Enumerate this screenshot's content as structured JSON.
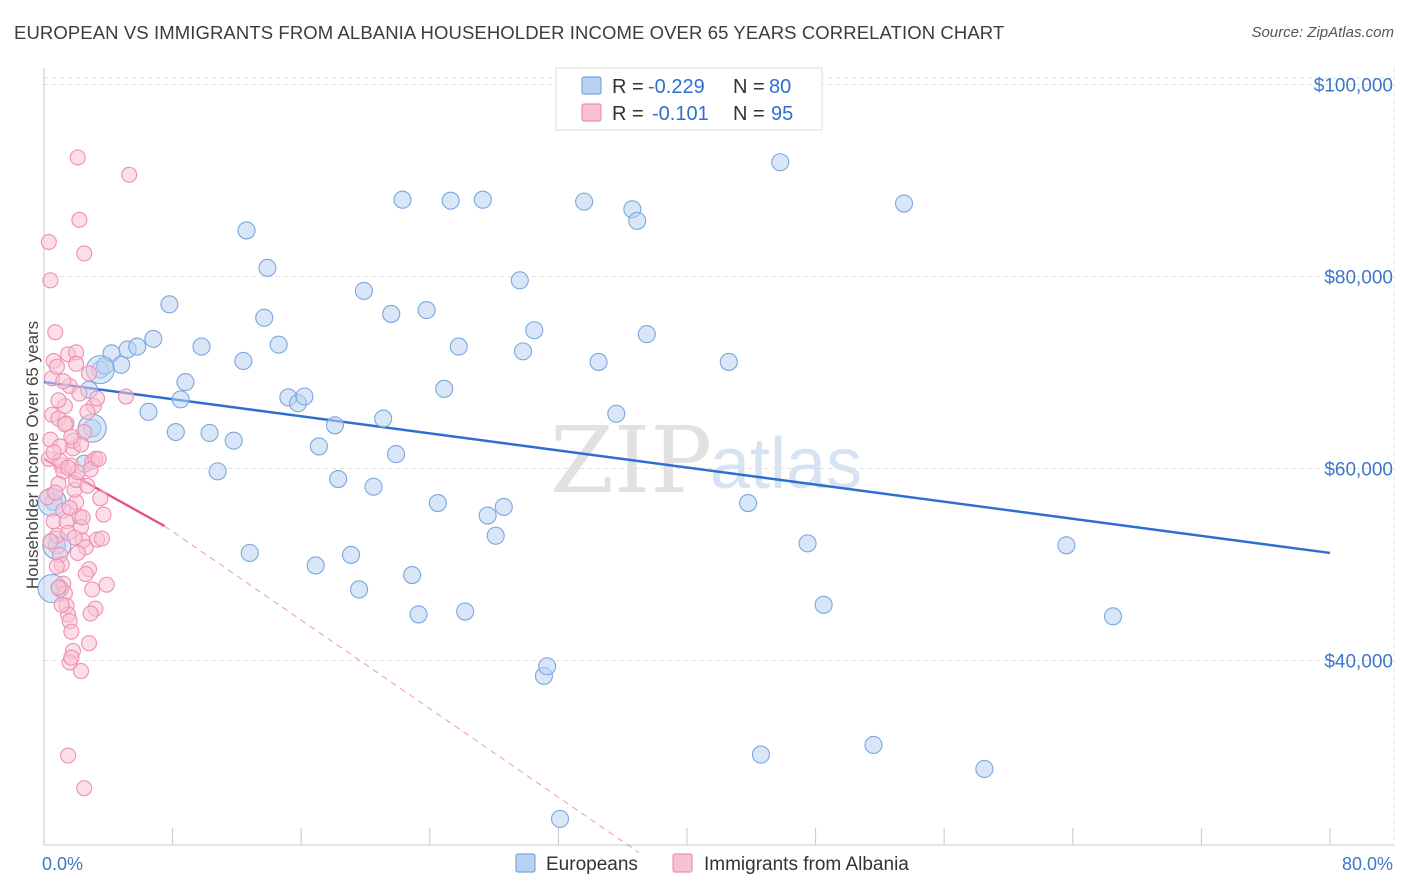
{
  "title": "EUROPEAN VS IMMIGRANTS FROM ALBANIA HOUSEHOLDER INCOME OVER 65 YEARS CORRELATION CHART",
  "source": "Source: ZipAtlas.com",
  "watermark": {
    "zip": "ZIP",
    "atlas": "atlas"
  },
  "chart_data": {
    "type": "scatter",
    "title": "EUROPEAN VS IMMIGRANTS FROM ALBANIA HOUSEHOLDER INCOME OVER 65 YEARS CORRELATION CHART",
    "xlabel": "",
    "ylabel": "Householder Income Over 65 years",
    "xlim": [
      0,
      80
    ],
    "ylim": [
      20000,
      104000
    ],
    "x_tick_labels": [
      "0.0%",
      "80.0%"
    ],
    "y_ticks": [
      {
        "value": 40000,
        "label": "$40,000"
      },
      {
        "value": 60000,
        "label": "$60,000"
      },
      {
        "value": 80000,
        "label": "$80,000"
      },
      {
        "value": 100000,
        "label": "$100,000"
      }
    ],
    "grid": true,
    "legend": {
      "position": "top-center",
      "entries": [
        {
          "r_label": "R =",
          "r_value": "-0.229",
          "n_label": "N =",
          "n_value": "80"
        },
        {
          "r_label": "R =",
          "r_value": "-0.101",
          "n_label": "N =",
          "n_value": "95"
        }
      ]
    },
    "series": [
      {
        "name": "Europeans",
        "color": "#7aa7df",
        "fill": "#b9d1f2",
        "trend": {
          "x": [
            0.0,
            80.0
          ],
          "y": [
            69000,
            51200
          ],
          "color": "#2c6fd1"
        },
        "points": [
          [
            1.0,
            47500
          ],
          [
            0.8,
            52000
          ],
          [
            0.6,
            56500
          ],
          [
            2.5,
            60500
          ],
          [
            3.0,
            64200
          ],
          [
            2.8,
            68200
          ],
          [
            3.5,
            70300
          ],
          [
            3.8,
            70700
          ],
          [
            4.2,
            72000
          ],
          [
            4.8,
            70800
          ],
          [
            5.2,
            72400
          ],
          [
            5.8,
            72700
          ],
          [
            6.8,
            73500
          ],
          [
            7.8,
            77100
          ],
          [
            6.5,
            65900
          ],
          [
            8.5,
            67200
          ],
          [
            8.8,
            69000
          ],
          [
            9.8,
            72700
          ],
          [
            8.2,
            63800
          ],
          [
            10.3,
            63700
          ],
          [
            10.8,
            59700
          ],
          [
            11.8,
            62900
          ],
          [
            12.4,
            71200
          ],
          [
            12.8,
            51200
          ],
          [
            12.6,
            84800
          ],
          [
            13.9,
            80900
          ],
          [
            13.7,
            75700
          ],
          [
            14.6,
            72900
          ],
          [
            15.2,
            67400
          ],
          [
            15.8,
            66800
          ],
          [
            16.2,
            67500
          ],
          [
            17.1,
            62300
          ],
          [
            16.9,
            49900
          ],
          [
            18.1,
            64500
          ],
          [
            18.3,
            58900
          ],
          [
            19.1,
            51000
          ],
          [
            19.6,
            47400
          ],
          [
            19.9,
            78500
          ],
          [
            20.5,
            58100
          ],
          [
            21.1,
            65200
          ],
          [
            21.6,
            76100
          ],
          [
            21.9,
            61500
          ],
          [
            22.3,
            88000
          ],
          [
            22.9,
            48900
          ],
          [
            23.3,
            44800
          ],
          [
            23.8,
            76500
          ],
          [
            24.5,
            56400
          ],
          [
            24.9,
            68300
          ],
          [
            25.3,
            87900
          ],
          [
            25.8,
            72700
          ],
          [
            26.2,
            45100
          ],
          [
            27.3,
            88000
          ],
          [
            27.6,
            55100
          ],
          [
            28.1,
            53000
          ],
          [
            28.6,
            56000
          ],
          [
            29.6,
            79600
          ],
          [
            29.8,
            72200
          ],
          [
            30.5,
            74400
          ],
          [
            31.1,
            38400
          ],
          [
            31.3,
            39400
          ],
          [
            32.1,
            23500
          ],
          [
            33.6,
            87800
          ],
          [
            34.5,
            71100
          ],
          [
            35.6,
            65700
          ],
          [
            36.6,
            87000
          ],
          [
            36.9,
            85800
          ],
          [
            37.5,
            74000
          ],
          [
            42.6,
            71100
          ],
          [
            43.8,
            56400
          ],
          [
            44.6,
            30200
          ],
          [
            45.8,
            91900
          ],
          [
            47.5,
            52200
          ],
          [
            48.5,
            45800
          ],
          [
            51.6,
            31200
          ],
          [
            53.5,
            87600
          ],
          [
            58.5,
            28700
          ],
          [
            63.6,
            52000
          ],
          [
            66.5,
            44600
          ]
        ],
        "large_points": [
          [
            3.0,
            64200
          ],
          [
            3.5,
            70300
          ],
          [
            0.5,
            56500
          ],
          [
            0.8,
            52000
          ],
          [
            0.5,
            47500
          ]
        ]
      },
      {
        "name": "Immigrants from Albania",
        "color": "#ef8fb0",
        "fill": "#f7c2d5",
        "trend": {
          "x": [
            0.0,
            7.5
          ],
          "y": [
            61000,
            54000
          ],
          "dashed_to": [
            37.0,
            20000
          ],
          "color": "#e5528a"
        },
        "points": [
          [
            0.2,
            57000
          ],
          [
            0.3,
            61000
          ],
          [
            0.4,
            63000
          ],
          [
            0.5,
            65600
          ],
          [
            0.5,
            69400
          ],
          [
            0.6,
            71200
          ],
          [
            0.7,
            74200
          ],
          [
            0.8,
            70600
          ],
          [
            0.9,
            65200
          ],
          [
            1.0,
            62300
          ],
          [
            1.1,
            60300
          ],
          [
            1.2,
            59700
          ],
          [
            1.3,
            66500
          ],
          [
            1.4,
            64700
          ],
          [
            1.5,
            71900
          ],
          [
            1.6,
            68600
          ],
          [
            1.7,
            60300
          ],
          [
            1.8,
            62100
          ],
          [
            0.3,
            83600
          ],
          [
            0.4,
            79600
          ],
          [
            2.1,
            92400
          ],
          [
            2.2,
            85900
          ],
          [
            2.5,
            82400
          ],
          [
            5.3,
            90600
          ],
          [
            0.6,
            54500
          ],
          [
            0.8,
            53000
          ],
          [
            1.0,
            51000
          ],
          [
            1.1,
            50000
          ],
          [
            1.2,
            48000
          ],
          [
            1.3,
            47000
          ],
          [
            1.4,
            45700
          ],
          [
            1.5,
            44800
          ],
          [
            1.6,
            44100
          ],
          [
            1.7,
            43000
          ],
          [
            1.8,
            41000
          ],
          [
            1.6,
            39800
          ],
          [
            1.7,
            40300
          ],
          [
            2.3,
            38900
          ],
          [
            1.5,
            30100
          ],
          [
            2.5,
            26700
          ],
          [
            2.0,
            56500
          ],
          [
            2.2,
            55000
          ],
          [
            2.3,
            53900
          ],
          [
            2.4,
            52500
          ],
          [
            2.6,
            51800
          ],
          [
            2.8,
            49500
          ],
          [
            3.0,
            47400
          ],
          [
            3.2,
            45400
          ],
          [
            3.3,
            52600
          ],
          [
            3.5,
            56900
          ],
          [
            3.7,
            55200
          ],
          [
            3.9,
            47900
          ],
          [
            3.0,
            60700
          ],
          [
            3.1,
            66500
          ],
          [
            2.0,
            72100
          ],
          [
            2.2,
            67800
          ],
          [
            3.2,
            61000
          ],
          [
            3.3,
            67300
          ],
          [
            2.8,
            69900
          ],
          [
            5.1,
            67500
          ],
          [
            1.9,
            57800
          ],
          [
            2.0,
            58800
          ],
          [
            2.1,
            59600
          ],
          [
            2.7,
            58200
          ],
          [
            2.9,
            59900
          ],
          [
            1.0,
            60800
          ],
          [
            0.9,
            58400
          ],
          [
            0.7,
            57500
          ],
          [
            1.2,
            55600
          ],
          [
            1.4,
            54500
          ],
          [
            1.5,
            53300
          ],
          [
            1.9,
            52800
          ],
          [
            2.6,
            49000
          ],
          [
            2.9,
            44900
          ],
          [
            1.1,
            45800
          ],
          [
            0.9,
            47600
          ],
          [
            0.8,
            49800
          ],
          [
            1.3,
            64600
          ],
          [
            2.5,
            63800
          ],
          [
            2.7,
            65900
          ],
          [
            1.8,
            62900
          ],
          [
            0.6,
            61700
          ],
          [
            1.5,
            60100
          ],
          [
            2.3,
            62500
          ],
          [
            3.4,
            61000
          ],
          [
            1.2,
            69100
          ],
          [
            2.0,
            70900
          ],
          [
            0.9,
            67100
          ],
          [
            1.7,
            63300
          ],
          [
            2.4,
            54900
          ],
          [
            3.6,
            52700
          ],
          [
            2.1,
            51200
          ],
          [
            1.6,
            55900
          ],
          [
            0.4,
            52400
          ],
          [
            2.8,
            41800
          ]
        ]
      }
    ]
  },
  "bottom_legend": [
    "Europeans",
    "Immigrants from Albania"
  ]
}
